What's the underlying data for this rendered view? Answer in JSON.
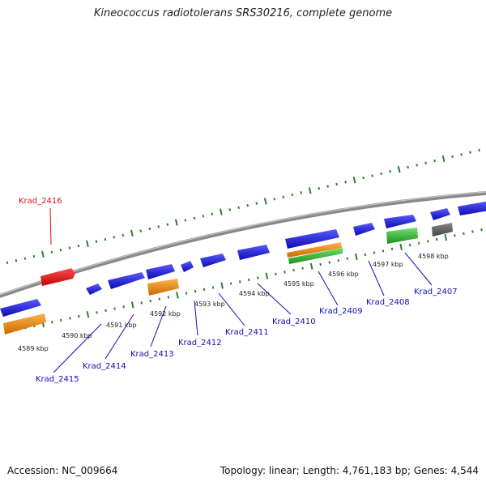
{
  "title": "Kineococcus radiotolerans SRS30216, complete genome",
  "footer": {
    "accession": "Accession: NC_009664",
    "summary": "Topology: linear; Length: 4,761,183 bp; Genes: 4,544"
  },
  "colors": {
    "backbone": "#8a8a8a",
    "tick": "#2e7d2e",
    "gene_forward": "#1a1adc",
    "gene_label": "#1010b0",
    "highlight_label": "#e01010"
  },
  "ticks": [
    {
      "label": "4589 kbp",
      "pos_kbp": 4589
    },
    {
      "label": "4590 kbp",
      "pos_kbp": 4590
    },
    {
      "label": "4591 kbp",
      "pos_kbp": 4591
    },
    {
      "label": "4592 kbp",
      "pos_kbp": 4592
    },
    {
      "label": "4593 kbp",
      "pos_kbp": 4593
    },
    {
      "label": "4594 kbp",
      "pos_kbp": 4594
    },
    {
      "label": "4595 kbp",
      "pos_kbp": 4595
    },
    {
      "label": "4596 kbp",
      "pos_kbp": 4596
    },
    {
      "label": "4597 kbp",
      "pos_kbp": 4597
    },
    {
      "label": "4598 kbp",
      "pos_kbp": 4598
    }
  ],
  "genes": [
    {
      "name": "Krad_2416",
      "color": "red",
      "highlight": true
    },
    {
      "name": "Krad_2415",
      "color": "blue"
    },
    {
      "name": "Krad_2414",
      "color": "blue"
    },
    {
      "name": "Krad_2413",
      "color": "blue"
    },
    {
      "name": "Krad_2412",
      "color": "blue"
    },
    {
      "name": "Krad_2411",
      "color": "blue"
    },
    {
      "name": "Krad_2410",
      "color": "blue"
    },
    {
      "name": "Krad_2409",
      "color": "blue"
    },
    {
      "name": "Krad_2408",
      "color": "blue"
    },
    {
      "name": "Krad_2407",
      "color": "blue"
    }
  ],
  "feature_colors": {
    "red": "#f01212",
    "blue": "#1a1adc",
    "orange": "#f08a10",
    "green": "#35c035",
    "gray": "#666666"
  }
}
